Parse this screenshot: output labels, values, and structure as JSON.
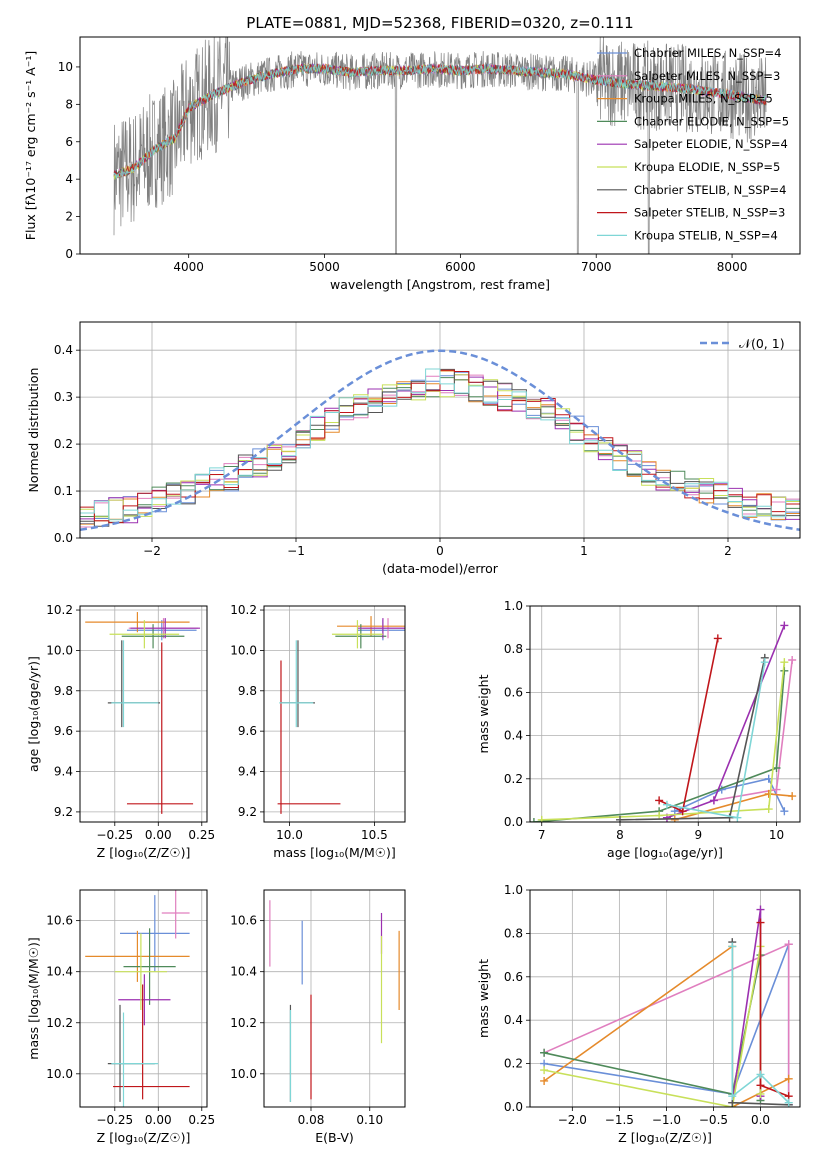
{
  "figure": {
    "title": "PLATE=0881, MJD=52368, FIBERID=0320, z=0.111"
  },
  "colors": {
    "chabrier_miles": "#6a8fd8",
    "salpeter_miles": "#e07fbf",
    "kroupa_miles": "#e58a2b",
    "chabrier_elodie": "#4f8a5a",
    "salpeter_elodie": "#9b30b0",
    "kroupa_elodie": "#c8e05a",
    "chabrier_stelib": "#555555",
    "salpeter_stelib": "#c0161b",
    "kroupa_stelib": "#7fd6d6",
    "normal_curve": "#6a8fd8",
    "grid": "#b0b0b0"
  },
  "chart_data": [
    {
      "id": "spectrum",
      "type": "line",
      "xlabel": "wavelength [Angstrom, rest frame]",
      "ylabel": "Flux [fλ10⁻¹⁷ erg cm⁻² s⁻¹ A⁻¹]",
      "xlim": [
        3200,
        8500
      ],
      "ylim": [
        0,
        11.6
      ],
      "xticks": [
        4000,
        5000,
        6000,
        7000,
        8000
      ],
      "yticks": [
        0,
        2,
        4,
        6,
        8,
        10
      ],
      "grid": false,
      "legend_position": "right",
      "continuum": {
        "x": [
          3450,
          3600,
          3750,
          3900,
          4000,
          4200,
          4400,
          4600,
          4800,
          5000,
          5200,
          5400,
          5600,
          5800,
          6000,
          6200,
          6400,
          6600,
          6800,
          7000,
          7200,
          7400,
          7600,
          7800,
          8000,
          8250
        ],
        "y": [
          4.2,
          4.6,
          5.6,
          6.2,
          7.8,
          8.6,
          9.2,
          9.6,
          9.9,
          9.9,
          9.7,
          9.8,
          9.8,
          9.9,
          9.8,
          9.9,
          9.8,
          9.7,
          9.6,
          9.3,
          9.1,
          9.0,
          8.9,
          8.7,
          8.5,
          8.2
        ]
      },
      "series": [
        {
          "name": "Chabrier MILES, N_SSP=4",
          "color_key": "chabrier_miles"
        },
        {
          "name": "Salpeter MILES, N_SSP=3",
          "color_key": "salpeter_miles"
        },
        {
          "name": "Kroupa MILES, N_SSP=5",
          "color_key": "kroupa_miles"
        },
        {
          "name": "Chabrier ELODIE, N_SSP=5",
          "color_key": "chabrier_elodie"
        },
        {
          "name": "Salpeter ELODIE, N_SSP=4",
          "color_key": "salpeter_elodie"
        },
        {
          "name": "Kroupa ELODIE, N_SSP=5",
          "color_key": "kroupa_elodie"
        },
        {
          "name": "Chabrier STELIB, N_SSP=4",
          "color_key": "chabrier_stelib"
        },
        {
          "name": "Salpeter STELIB, N_SSP=3",
          "color_key": "salpeter_stelib"
        },
        {
          "name": "Kroupa STELIB, N_SSP=4",
          "color_key": "kroupa_stelib"
        }
      ]
    },
    {
      "id": "residuals",
      "type": "histogram",
      "xlabel": "(data-model)/error",
      "ylabel": "Normed distribution",
      "xlim": [
        -2.5,
        2.5
      ],
      "ylim": [
        0,
        0.46
      ],
      "xticks": [
        -2,
        -1,
        0,
        1,
        2
      ],
      "yticks": [
        0.0,
        0.1,
        0.2,
        0.3,
        0.4
      ],
      "grid": true,
      "legend_position": "top-right",
      "normal_label": "𝒩(0, 1)",
      "bins": 50,
      "base_histogram": [
        0.05,
        0.05,
        0.06,
        0.06,
        0.07,
        0.08,
        0.09,
        0.1,
        0.11,
        0.12,
        0.13,
        0.15,
        0.16,
        0.17,
        0.19,
        0.21,
        0.23,
        0.25,
        0.27,
        0.28,
        0.29,
        0.3,
        0.31,
        0.32,
        0.33,
        0.33,
        0.33,
        0.32,
        0.31,
        0.3,
        0.29,
        0.28,
        0.27,
        0.25,
        0.23,
        0.21,
        0.19,
        0.17,
        0.16,
        0.14,
        0.13,
        0.12,
        0.11,
        0.1,
        0.09,
        0.08,
        0.07,
        0.07,
        0.06,
        0.06
      ]
    },
    {
      "id": "age_vs_Z",
      "type": "errorbar",
      "xlabel": "Z [log₁₀(Z/Z☉)]",
      "ylabel": "age  [log₁₀(age/yr)]",
      "xlim": [
        -0.45,
        0.28
      ],
      "ylim": [
        9.15,
        10.22
      ],
      "xticks": [
        -0.25,
        0.0,
        0.25
      ],
      "xticklabels": [
        "−0.25",
        "0.00",
        "0.25"
      ],
      "yticks": [
        9.2,
        9.4,
        9.6,
        9.8,
        10.0,
        10.2
      ],
      "grid": true,
      "points": [
        {
          "color_key": "chabrier_miles",
          "x": 0.02,
          "xerr": [
            0.2,
            0.2
          ],
          "y": 10.1,
          "yerr": [
            0.05,
            0.05
          ]
        },
        {
          "color_key": "salpeter_miles",
          "x": 0.03,
          "xerr": [
            0.2,
            0.2
          ],
          "y": 10.11,
          "yerr": [
            0.05,
            0.05
          ]
        },
        {
          "color_key": "kroupa_miles",
          "x": -0.12,
          "xerr": [
            0.3,
            0.3
          ],
          "y": 10.14,
          "yerr": [
            0.05,
            0.05
          ]
        },
        {
          "color_key": "chabrier_elodie",
          "x": -0.03,
          "xerr": [
            0.18,
            0.18
          ],
          "y": 10.07,
          "yerr": [
            0.06,
            0.06
          ]
        },
        {
          "color_key": "salpeter_elodie",
          "x": 0.04,
          "xerr": [
            0.2,
            0.2
          ],
          "y": 10.11,
          "yerr": [
            0.05,
            0.05
          ]
        },
        {
          "color_key": "kroupa_elodie",
          "x": -0.08,
          "xerr": [
            0.2,
            0.2
          ],
          "y": 10.08,
          "yerr": [
            0.07,
            0.07
          ]
        },
        {
          "color_key": "chabrier_stelib",
          "x": -0.21,
          "xerr": [
            0.08,
            0.22
          ],
          "y": 9.74,
          "yerr": [
            0.12,
            0.31
          ]
        },
        {
          "color_key": "salpeter_stelib",
          "x": 0.02,
          "xerr": [
            0.2,
            0.18
          ],
          "y": 9.24,
          "yerr": [
            0.05,
            0.8
          ]
        },
        {
          "color_key": "kroupa_stelib",
          "x": -0.2,
          "xerr": [
            0.07,
            0.2
          ],
          "y": 9.74,
          "yerr": [
            0.12,
            0.31
          ]
        }
      ]
    },
    {
      "id": "age_vs_mass",
      "type": "errorbar",
      "xlabel": "mass [log₁₀(M/M☉)]",
      "ylabel": "",
      "xlim": [
        9.85,
        10.68
      ],
      "ylim": [
        9.15,
        10.22
      ],
      "xticks": [
        10.0,
        10.5
      ],
      "xticklabels": [
        "10.0",
        "10.5"
      ],
      "yticks": [
        9.2,
        9.4,
        9.6,
        9.8,
        10.0,
        10.2
      ],
      "grid": true,
      "points": [
        {
          "color_key": "chabrier_miles",
          "x": 10.55,
          "xerr": [
            0.15,
            0.15
          ],
          "y": 10.1,
          "yerr": [
            0.05,
            0.05
          ]
        },
        {
          "color_key": "salpeter_miles",
          "x": 10.58,
          "xerr": [
            0.15,
            0.15
          ],
          "y": 10.11,
          "yerr": [
            0.05,
            0.05
          ]
        },
        {
          "color_key": "kroupa_miles",
          "x": 10.48,
          "xerr": [
            0.2,
            0.2
          ],
          "y": 10.12,
          "yerr": [
            0.05,
            0.05
          ]
        },
        {
          "color_key": "chabrier_elodie",
          "x": 10.42,
          "xerr": [
            0.15,
            0.15
          ],
          "y": 10.07,
          "yerr": [
            0.06,
            0.06
          ]
        },
        {
          "color_key": "salpeter_elodie",
          "x": 10.55,
          "xerr": [
            0.15,
            0.15
          ],
          "y": 10.11,
          "yerr": [
            0.05,
            0.05
          ]
        },
        {
          "color_key": "kroupa_elodie",
          "x": 10.4,
          "xerr": [
            0.15,
            0.15
          ],
          "y": 10.08,
          "yerr": [
            0.07,
            0.07
          ]
        },
        {
          "color_key": "chabrier_stelib",
          "x": 10.05,
          "xerr": [
            0.1,
            0.1
          ],
          "y": 9.74,
          "yerr": [
            0.12,
            0.31
          ]
        },
        {
          "color_key": "salpeter_stelib",
          "x": 9.95,
          "xerr": [
            0.02,
            0.35
          ],
          "y": 9.24,
          "yerr": [
            0.05,
            0.71
          ]
        },
        {
          "color_key": "kroupa_stelib",
          "x": 10.04,
          "xerr": [
            0.1,
            0.1
          ],
          "y": 9.74,
          "yerr": [
            0.12,
            0.31
          ]
        }
      ]
    },
    {
      "id": "weight_vs_age",
      "type": "line",
      "xlabel": "age  [log₁₀(age/yr)]",
      "ylabel": "mass weight",
      "xlim": [
        6.85,
        10.3
      ],
      "ylim": [
        0,
        1.0
      ],
      "xticks": [
        7,
        8,
        9,
        10
      ],
      "xticklabels": [
        "7",
        "8",
        "9",
        "10"
      ],
      "yticks": [
        0.0,
        0.2,
        0.4,
        0.6,
        0.8,
        1.0
      ],
      "grid": true,
      "series": [
        {
          "color_key": "chabrier_miles",
          "x": [
            8.7,
            9.3,
            9.9,
            10.1
          ],
          "y": [
            0.05,
            0.15,
            0.2,
            0.05
          ]
        },
        {
          "color_key": "salpeter_miles",
          "x": [
            9.2,
            10.0,
            10.2
          ],
          "y": [
            0.1,
            0.15,
            0.75
          ]
        },
        {
          "color_key": "kroupa_miles",
          "x": [
            8.7,
            9.9,
            10.2
          ],
          "y": [
            0.01,
            0.13,
            0.12
          ]
        },
        {
          "color_key": "chabrier_elodie",
          "x": [
            6.9,
            8.5,
            10.0,
            10.1
          ],
          "y": [
            0.0,
            0.05,
            0.25,
            0.7
          ]
        },
        {
          "color_key": "salpeter_elodie",
          "x": [
            8.6,
            9.2,
            10.1
          ],
          "y": [
            0.02,
            0.1,
            0.91
          ]
        },
        {
          "color_key": "kroupa_elodie",
          "x": [
            7.0,
            8.5,
            9.9,
            10.1
          ],
          "y": [
            0.01,
            0.03,
            0.06,
            0.74
          ]
        },
        {
          "color_key": "chabrier_stelib",
          "x": [
            8.0,
            9.4,
            9.85
          ],
          "y": [
            0.01,
            0.02,
            0.76
          ]
        },
        {
          "color_key": "salpeter_stelib",
          "x": [
            8.5,
            8.8,
            9.25
          ],
          "y": [
            0.1,
            0.05,
            0.85
          ]
        },
        {
          "color_key": "kroupa_stelib",
          "x": [
            8.6,
            9.5,
            9.85
          ],
          "y": [
            0.08,
            0.02,
            0.74
          ]
        }
      ]
    },
    {
      "id": "mass_vs_Z",
      "type": "errorbar",
      "xlabel": "Z [log₁₀(Z/Z☉)]",
      "ylabel": "mass [log₁₀(M/M☉)]",
      "xlim": [
        -0.45,
        0.28
      ],
      "ylim": [
        9.87,
        10.72
      ],
      "xticks": [
        -0.25,
        0.0,
        0.25
      ],
      "xticklabels": [
        "−0.25",
        "0.00",
        "0.25"
      ],
      "yticks": [
        10.0,
        10.2,
        10.4,
        10.6
      ],
      "grid": true,
      "points": [
        {
          "color_key": "chabrier_miles",
          "x": -0.02,
          "xerr": [
            0.2,
            0.2
          ],
          "y": 10.55,
          "yerr": [
            0.15,
            0.15
          ]
        },
        {
          "color_key": "salpeter_miles",
          "x": 0.1,
          "xerr": [
            0.08,
            0.08
          ],
          "y": 10.63,
          "yerr": [
            0.1,
            0.1
          ]
        },
        {
          "color_key": "kroupa_miles",
          "x": -0.12,
          "xerr": [
            0.3,
            0.3
          ],
          "y": 10.46,
          "yerr": [
            0.1,
            0.1
          ]
        },
        {
          "color_key": "chabrier_elodie",
          "x": -0.05,
          "xerr": [
            0.15,
            0.15
          ],
          "y": 10.42,
          "yerr": [
            0.15,
            0.15
          ]
        },
        {
          "color_key": "salpeter_elodie",
          "x": -0.08,
          "xerr": [
            0.15,
            0.15
          ],
          "y": 10.29,
          "yerr": [
            0.1,
            0.1
          ]
        },
        {
          "color_key": "kroupa_elodie",
          "x": -0.1,
          "xerr": [
            0.15,
            0.15
          ],
          "y": 10.4,
          "yerr": [
            0.15,
            0.15
          ]
        },
        {
          "color_key": "chabrier_stelib",
          "x": -0.22,
          "xerr": [
            0.07,
            0.2
          ],
          "y": 10.04,
          "yerr": [
            0.15,
            0.23
          ]
        },
        {
          "color_key": "salpeter_stelib",
          "x": -0.09,
          "xerr": [
            0.17,
            0.27
          ],
          "y": 9.95,
          "yerr": [
            0.05,
            0.4
          ]
        },
        {
          "color_key": "kroupa_stelib",
          "x": -0.2,
          "xerr": [
            0.07,
            0.2
          ],
          "y": 10.04,
          "yerr": [
            0.21,
            0.2
          ]
        }
      ]
    },
    {
      "id": "mass_vs_ebv",
      "type": "errorbar",
      "xlabel": "E(B-V)",
      "ylabel": "",
      "xlim": [
        0.064,
        0.112
      ],
      "ylim": [
        9.87,
        10.72
      ],
      "xticks": [
        0.08,
        0.1
      ],
      "xticklabels": [
        "0.08",
        "0.10"
      ],
      "yticks": [
        10.0,
        10.2,
        10.4,
        10.6
      ],
      "grid": true,
      "points": [
        {
          "color_key": "salpeter_miles",
          "x": 0.066,
          "xerr": [
            0,
            0
          ],
          "y": 10.55,
          "yerr": [
            0.13,
            0.13
          ]
        },
        {
          "color_key": "chabrier_miles",
          "x": 0.077,
          "xerr": [
            0,
            0
          ],
          "y": 10.5,
          "yerr": [
            0.15,
            0.1
          ]
        },
        {
          "color_key": "chabrier_stelib",
          "x": 0.073,
          "xerr": [
            0,
            0
          ],
          "y": 10.05,
          "yerr": [
            0.16,
            0.22
          ]
        },
        {
          "color_key": "kroupa_stelib",
          "x": 0.073,
          "xerr": [
            0,
            0
          ],
          "y": 10.04,
          "yerr": [
            0.15,
            0.21
          ]
        },
        {
          "color_key": "salpeter_stelib",
          "x": 0.08,
          "xerr": [
            0,
            0
          ],
          "y": 10.1,
          "yerr": [
            0.2,
            0.21
          ]
        },
        {
          "color_key": "salpeter_elodie",
          "x": 0.104,
          "xerr": [
            0,
            0
          ],
          "y": 10.55,
          "yerr": [
            0.08,
            0.08
          ]
        },
        {
          "color_key": "kroupa_elodie",
          "x": 0.104,
          "xerr": [
            0,
            0
          ],
          "y": 10.34,
          "yerr": [
            0.22,
            0.2
          ]
        },
        {
          "color_key": "kroupa_miles",
          "x": 0.11,
          "xerr": [
            0,
            0
          ],
          "y": 10.4,
          "yerr": [
            0.15,
            0.16
          ]
        }
      ]
    },
    {
      "id": "weight_vs_Z",
      "type": "line",
      "xlabel": "Z [log₁₀(Z/Z☉)]",
      "ylabel": "mass weight",
      "xlim": [
        -2.45,
        0.42
      ],
      "ylim": [
        0,
        1.0
      ],
      "xticks": [
        -2.0,
        -1.5,
        -1.0,
        -0.5,
        0.0
      ],
      "xticklabels": [
        "−2.0",
        "−1.5",
        "−1.0",
        "−0.5",
        "0.0"
      ],
      "yticks": [
        0.0,
        0.2,
        0.4,
        0.6,
        0.8,
        1.0
      ],
      "grid": true,
      "series": [
        {
          "color_key": "chabrier_miles",
          "x": [
            -2.3,
            -0.3,
            0.3,
            0.3
          ],
          "y": [
            0.2,
            0.06,
            0.75,
            0.01
          ]
        },
        {
          "color_key": "salpeter_miles",
          "x": [
            -2.3,
            0.3,
            0.3
          ],
          "y": [
            0.25,
            0.75,
            0.01
          ]
        },
        {
          "color_key": "kroupa_miles",
          "x": [
            -2.3,
            -0.3,
            -0.3,
            0.3
          ],
          "y": [
            0.12,
            0.74,
            0.0,
            0.13
          ]
        },
        {
          "color_key": "chabrier_elodie",
          "x": [
            -2.3,
            -0.3,
            0.0,
            0.0
          ],
          "y": [
            0.25,
            0.06,
            0.7,
            0.03
          ]
        },
        {
          "color_key": "salpeter_elodie",
          "x": [
            -0.3,
            0.0,
            0.0
          ],
          "y": [
            0.02,
            0.91,
            0.05
          ]
        },
        {
          "color_key": "kroupa_elodie",
          "x": [
            -2.3,
            -0.3,
            0.0,
            0.0
          ],
          "y": [
            0.17,
            0.0,
            0.74,
            0.06
          ]
        },
        {
          "color_key": "chabrier_stelib",
          "x": [
            -0.3,
            -0.3,
            0.3
          ],
          "y": [
            0.76,
            0.02,
            0.01
          ]
        },
        {
          "color_key": "salpeter_stelib",
          "x": [
            0.0,
            0.0,
            0.3
          ],
          "y": [
            0.85,
            0.1,
            0.05
          ]
        },
        {
          "color_key": "kroupa_stelib",
          "x": [
            -0.3,
            -0.3,
            0.0,
            0.3
          ],
          "y": [
            0.74,
            0.05,
            0.15,
            0.02
          ]
        }
      ]
    }
  ]
}
